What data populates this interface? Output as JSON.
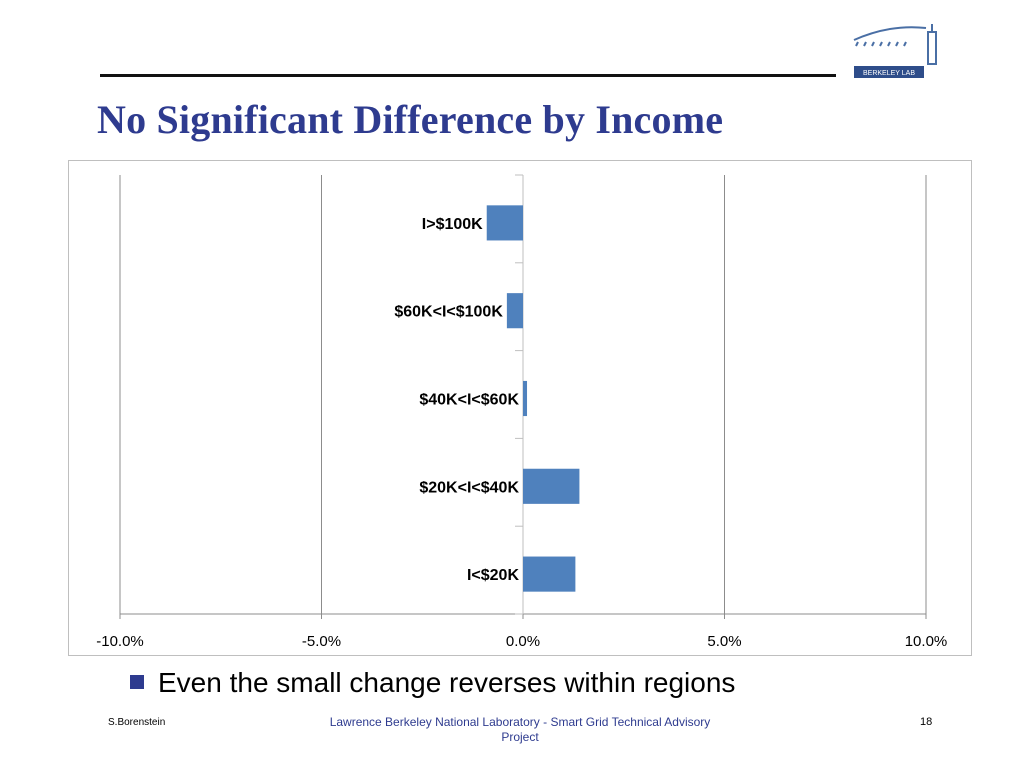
{
  "slide": {
    "title": "No Significant Difference by Income",
    "bullet": "Even the small change reverses within regions",
    "footer_left": "S.Borenstein",
    "footer_mid": "Lawrence Berkeley National Laboratory - Smart Grid Technical Advisory Project",
    "page_number": "18",
    "logo_text": "BERKELEY LAB"
  },
  "colors": {
    "title": "#2e3b8f",
    "bar": "#4f81bd",
    "grid": "#8c8c8c"
  },
  "chart_data": {
    "type": "bar",
    "orientation": "horizontal",
    "categories": [
      "I>$100K",
      "$60K<I<$100K",
      "$40K<I<$60K",
      "$20K<I<$40K",
      "I<$20K"
    ],
    "values": [
      -0.9,
      -0.4,
      0.1,
      1.4,
      1.3
    ],
    "xlim": [
      -10.0,
      10.0
    ],
    "xticks": [
      "-10.0%",
      "-5.0%",
      "0.0%",
      "5.0%",
      "10.0%"
    ],
    "grid": true,
    "legend": "none"
  }
}
